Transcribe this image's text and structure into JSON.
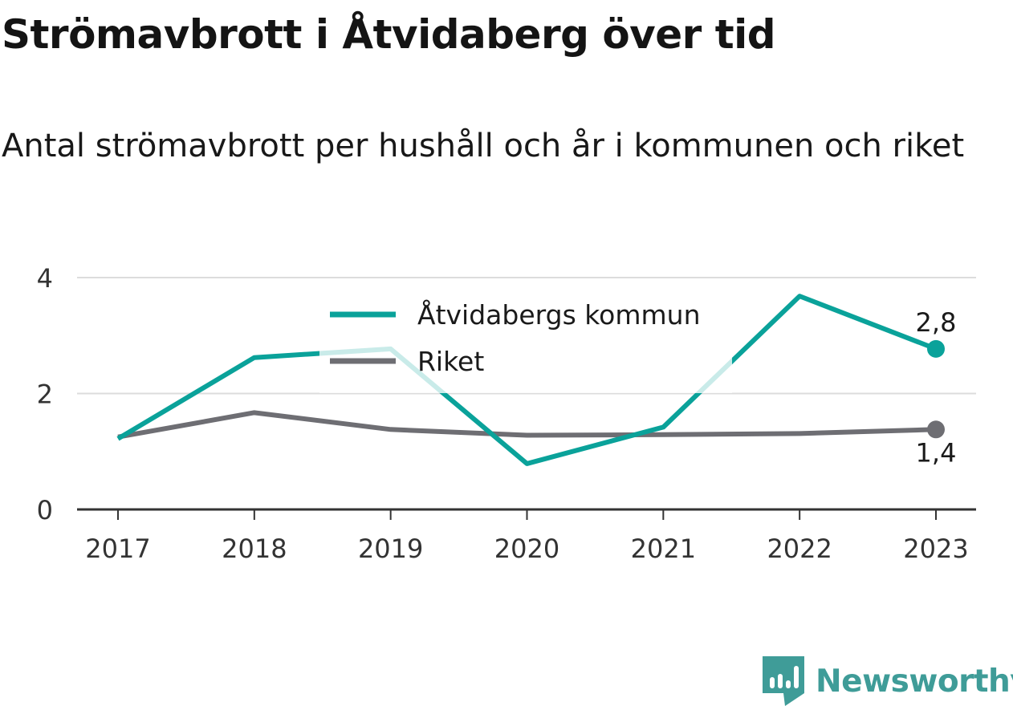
{
  "title": "Strömavbrott i Åtvidaberg över tid",
  "subtitle": "Antal strömavbrott per hushåll och år i kommunen och riket",
  "brand": {
    "name": "Newsworthy",
    "color": "#3f9c98",
    "icon": "newsworthy-logo-icon"
  },
  "chart_data": {
    "type": "line",
    "title": "Strömavbrott i Åtvidaberg över tid",
    "subtitle": "Antal strömavbrott per hushåll och år i kommunen och riket",
    "x": [
      "2017",
      "2018",
      "2019",
      "2020",
      "2021",
      "2022",
      "2023"
    ],
    "ylim": [
      0,
      4
    ],
    "yticks": [
      0,
      2,
      4
    ],
    "ytick_labels": [
      "0",
      "2",
      "4"
    ],
    "grid": true,
    "legend_position": "top-center",
    "series": [
      {
        "name": "Åtvidabergs kommun",
        "color": "#0aa29a",
        "values": [
          1.22,
          2.62,
          2.77,
          0.79,
          1.42,
          3.68,
          2.77
        ],
        "end_label": "2,8"
      },
      {
        "name": "Riket",
        "color": "#6e6e73",
        "values": [
          1.25,
          1.67,
          1.38,
          1.28,
          1.29,
          1.31,
          1.38
        ],
        "end_label": "1,4"
      }
    ]
  }
}
